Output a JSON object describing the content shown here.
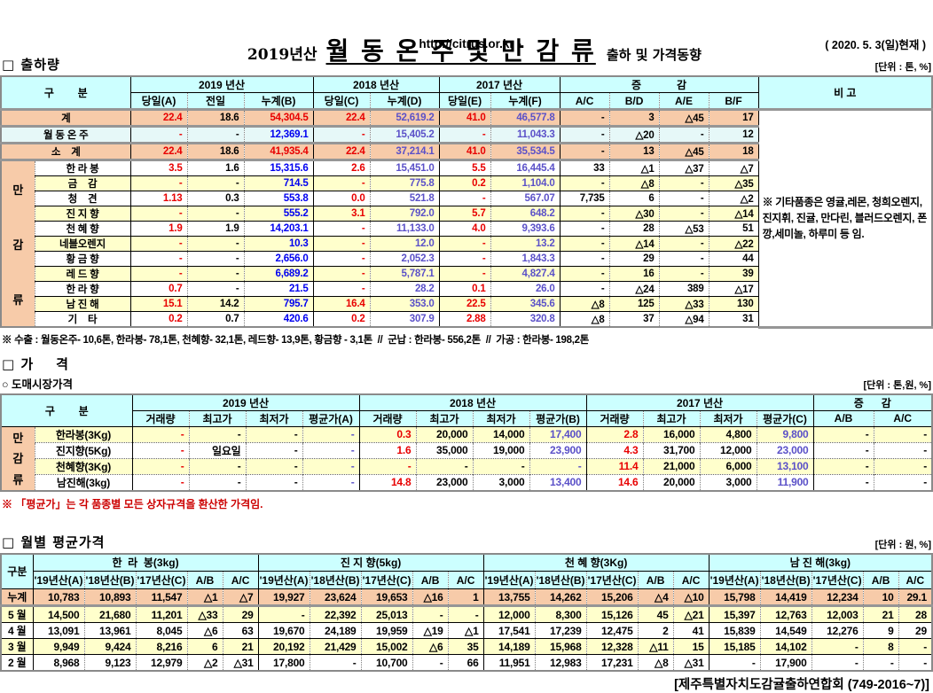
{
  "colors": {
    "header_bg": "#CCFFFF",
    "total_row_bg": "#F7CBA9",
    "alt_row_bg": "#FFFFCC",
    "winter_row_bg": "#E6F8F8",
    "daily_red": "#E80000",
    "cumulative_blue": "#0000F0",
    "cumulative_violet": "#5B51C8",
    "note_red": "#CC0000"
  },
  "header": {
    "year_label": "2019년산",
    "main_title": "월 동 온 주 및 만 감 류",
    "subtitle": "출하 및 가격동향",
    "url": "- http://citrus.or.kr -",
    "as_of": "( 2020. 5. 3(일)현재 )"
  },
  "shipment": {
    "section_label": "□ 출하량",
    "unit_label": "[단위 : 톤, %]",
    "col_group_label": "구        분",
    "year_groups": [
      "2019 년산",
      "2018 년산",
      "2017 년산"
    ],
    "change_group": "증            감",
    "remark_header": "비 고",
    "sub_cols": [
      "당일(A)",
      "전일",
      "누계(B)",
      "당일(C)",
      "누계(D)",
      "당일(E)",
      "누계(F)",
      "A/C",
      "B/D",
      "A/E",
      "B/F"
    ],
    "category_label": "만감류",
    "rows": [
      {
        "label": "계",
        "type": "total",
        "cells": [
          "22.4",
          "18.6",
          "54,304.5",
          "22.4",
          "52,619.2",
          "41.0",
          "46,577.8",
          "-",
          "3",
          "△45",
          "17"
        ]
      },
      {
        "label": "월 동 온 주",
        "type": "winter",
        "cells": [
          "-",
          "-",
          "12,369.1",
          "-",
          "15,405.2",
          "-",
          "11,043.3",
          "-",
          "△20",
          "-",
          "12"
        ]
      },
      {
        "label": "소    계",
        "type": "total",
        "cells": [
          "22.4",
          "18.6",
          "41,935.4",
          "22.4",
          "37,214.1",
          "41.0",
          "35,534.5",
          "-",
          "13",
          "△45",
          "18"
        ]
      },
      {
        "label": "한 라 봉",
        "type": "item",
        "cells": [
          "3.5",
          "1.6",
          "15,315.6",
          "2.6",
          "15,451.0",
          "5.5",
          "16,445.4",
          "33",
          "△1",
          "△37",
          "△7"
        ]
      },
      {
        "label": "금    감",
        "type": "item",
        "cells": [
          "-",
          "-",
          "714.5",
          "-",
          "775.8",
          "0.2",
          "1,104.0",
          "-",
          "△8",
          "-",
          "△35"
        ]
      },
      {
        "label": "청    견",
        "type": "item",
        "cells": [
          "1.13",
          "0.3",
          "553.8",
          "0.0",
          "521.8",
          "-",
          "567.07",
          "7,735",
          "6",
          "-",
          "△2"
        ]
      },
      {
        "label": "진 지 향",
        "type": "item",
        "cells": [
          "-",
          "-",
          "555.2",
          "3.1",
          "792.0",
          "5.7",
          "648.2",
          "-",
          "△30",
          "-",
          "△14"
        ]
      },
      {
        "label": "천 혜 향",
        "type": "item",
        "cells": [
          "1.9",
          "1.9",
          "14,203.1",
          "-",
          "11,133.0",
          "4.0",
          "9,393.6",
          "-",
          "28",
          "△53",
          "51"
        ]
      },
      {
        "label": "네블오렌지",
        "type": "item",
        "cells": [
          "-",
          "-",
          "10.3",
          "-",
          "12.0",
          "-",
          "13.2",
          "-",
          "△14",
          "-",
          "△22"
        ]
      },
      {
        "label": "황 금 향",
        "type": "item",
        "cells": [
          "-",
          "-",
          "2,656.0",
          "-",
          "2,052.3",
          "-",
          "1,843.3",
          "-",
          "29",
          "-",
          "44"
        ]
      },
      {
        "label": "레 드 향",
        "type": "item",
        "cells": [
          "-",
          "-",
          "6,689.2",
          "-",
          "5,787.1",
          "-",
          "4,827.4",
          "-",
          "16",
          "-",
          "39"
        ]
      },
      {
        "label": "한 라 향",
        "type": "item",
        "cells": [
          "0.7",
          "-",
          "21.5",
          "-",
          "28.2",
          "0.1",
          "26.0",
          "-",
          "△24",
          "389",
          "△17"
        ]
      },
      {
        "label": "남 진 해",
        "type": "item",
        "cells": [
          "15.1",
          "14.2",
          "795.7",
          "16.4",
          "353.0",
          "22.5",
          "345.6",
          "△8",
          "125",
          "△33",
          "130"
        ]
      },
      {
        "label": "기    타",
        "type": "item",
        "cells": [
          "0.2",
          "0.7",
          "420.6",
          "0.2",
          "307.9",
          "2.88",
          "320.8",
          "△8",
          "37",
          "△94",
          "31"
        ]
      }
    ],
    "remark": "※ 기타품종은 영귤,레몬, 청희오렌지, 진지휘, 진귤, 만다린, 블러드오렌지, 폰깡,세미놀, 하루미 등 임.",
    "footnote": "※ 수출 : 월동온주- 10,6톤, 한라봉- 78,1톤, 천혜향- 32,1톤, 레드향- 13,9톤, 황금향 - 3,1톤  //  군납 : 한라봉- 556,2톤  //  가공 : 한라봉- 198,2톤"
  },
  "price": {
    "section_label": "□ 가    격",
    "sub_section_label": "○ 도매시장가격",
    "unit_label": "[단위 : 톤,원, %]",
    "col_group_label": "구        분",
    "year_groups": [
      "2019 년산",
      "2018 년산",
      "2017 년산"
    ],
    "change_group": "증      감",
    "sub_cols": [
      "거래량",
      "최고가",
      "최저가",
      "평균가(A)",
      "거래량",
      "최고가",
      "최저가",
      "평균가(B)",
      "거래량",
      "최고가",
      "최저가",
      "평균가(C)",
      "A/B",
      "A/C"
    ],
    "category_label": "만감류",
    "rows": [
      {
        "label": "한라봉(3Kg)",
        "cells": [
          "-",
          "-",
          "-",
          "-",
          "0.3",
          "20,000",
          "14,000",
          "17,400",
          "2.8",
          "16,000",
          "4,800",
          "9,800",
          "-",
          "-"
        ]
      },
      {
        "label": "진지향(5Kg)",
        "cells": [
          "-",
          "일요일",
          "-",
          "-",
          "1.6",
          "35,000",
          "19,000",
          "23,900",
          "4.3",
          "31,700",
          "12,000",
          "23,000",
          "-",
          "-"
        ]
      },
      {
        "label": "천혜향(3Kg)",
        "cells": [
          "-",
          "-",
          "-",
          "-",
          "-",
          "-",
          "-",
          "-",
          "11.4",
          "21,000",
          "6,000",
          "13,100",
          "-",
          "-"
        ]
      },
      {
        "label": "남진해(3kg)",
        "cells": [
          "-",
          "-",
          "-",
          "-",
          "14.8",
          "23,000",
          "3,000",
          "13,400",
          "14.6",
          "20,000",
          "3,000",
          "11,900",
          "-",
          "-"
        ]
      }
    ],
    "footnote": "※ 「평균가」는 각 품종별 모든 상자규격을 환산한 가격임."
  },
  "monthly": {
    "section_label": "□ 월별 평균가격",
    "unit_label": "[단위 : 원, %]",
    "col_group_label": "구분",
    "groups": [
      "한  라  봉(3kg)",
      "진 지 향(5kg)",
      "천 혜 향(3Kg)",
      "남 진 해(3kg)"
    ],
    "sub_cols": [
      "'19년산(A)",
      "'18년산(B)",
      "'17년산(C)",
      "A/B",
      "A/C"
    ],
    "rows": [
      {
        "label": "누계",
        "type": "total",
        "cells": [
          "10,783",
          "10,893",
          "11,547",
          "△1",
          "△7",
          "19,927",
          "23,624",
          "19,653",
          "△16",
          "1",
          "13,755",
          "14,262",
          "15,206",
          "△4",
          "△10",
          "15,798",
          "14,419",
          "12,234",
          "10",
          "29.1"
        ]
      },
      {
        "label": "5 월",
        "type": "odd",
        "cells": [
          "14,500",
          "21,680",
          "11,201",
          "△33",
          "29",
          "-",
          "22,392",
          "25,013",
          "-",
          "-",
          "12,000",
          "8,300",
          "15,126",
          "45",
          "△21",
          "15,397",
          "12,763",
          "12,003",
          "21",
          "28"
        ]
      },
      {
        "label": "4 월",
        "type": "even",
        "cells": [
          "13,091",
          "13,961",
          "8,045",
          "△6",
          "63",
          "19,670",
          "24,189",
          "19,959",
          "△19",
          "△1",
          "17,541",
          "17,239",
          "12,475",
          "2",
          "41",
          "15,839",
          "14,549",
          "12,276",
          "9",
          "29"
        ]
      },
      {
        "label": "3 월",
        "type": "odd",
        "cells": [
          "9,949",
          "9,424",
          "8,216",
          "6",
          "21",
          "20,192",
          "21,429",
          "15,002",
          "△6",
          "35",
          "14,189",
          "15,968",
          "12,328",
          "△11",
          "15",
          "15,185",
          "14,102",
          "-",
          "8",
          "-"
        ]
      },
      {
        "label": "2 월",
        "type": "even",
        "cells": [
          "8,968",
          "9,123",
          "12,979",
          "△2",
          "△31",
          "17,800",
          "-",
          "10,700",
          "-",
          "66",
          "11,951",
          "12,983",
          "17,231",
          "△8",
          "△31",
          "-",
          "17,900",
          "-",
          "-",
          "-"
        ]
      }
    ]
  },
  "footer": "[제주특별자치도감귤출하연합회 (749-2016~7)]"
}
